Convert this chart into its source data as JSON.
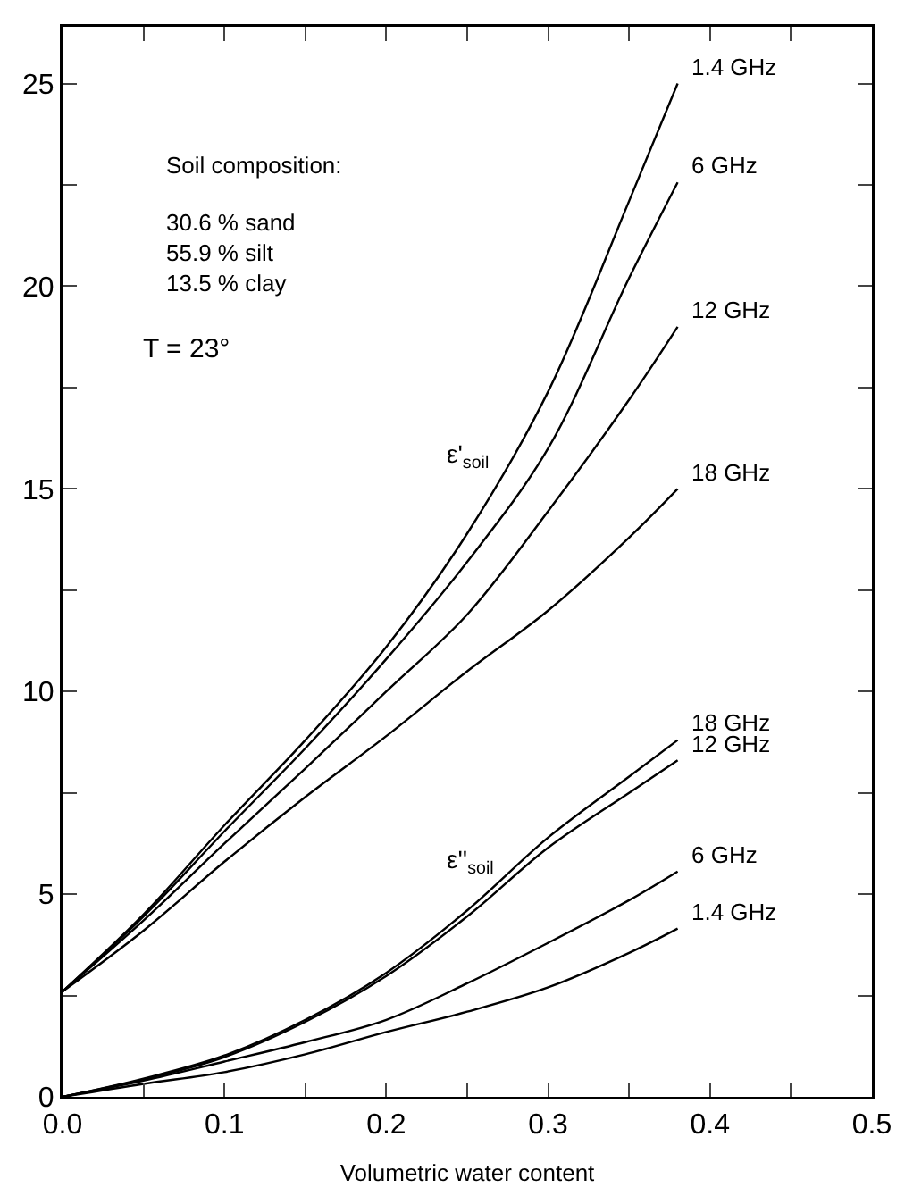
{
  "chart_data": {
    "type": "line",
    "xlabel": "Volumetric water content",
    "x": [
      0,
      0.05,
      0.1,
      0.15,
      0.2,
      0.25,
      0.3,
      0.35,
      0.38
    ],
    "series": [
      {
        "name": "1.4 GHz",
        "color": "#000000",
        "values": [
          2.6,
          4.5,
          6.7,
          8.8,
          11.1,
          13.9,
          17.4,
          22.1,
          25.0
        ]
      },
      {
        "name": "6 GHz",
        "color": "#000000",
        "values": [
          2.6,
          4.45,
          6.55,
          8.6,
          10.8,
          13.2,
          16.0,
          20.2,
          22.56
        ]
      },
      {
        "name": "12 GHz",
        "color": "#000000",
        "values": [
          2.6,
          4.35,
          6.25,
          8.1,
          10.0,
          11.9,
          14.45,
          17.2,
          19.0
        ]
      },
      {
        "name": "18 GHz",
        "color": "#000000",
        "values": [
          2.6,
          4.1,
          5.8,
          7.4,
          8.9,
          10.5,
          12.0,
          13.8,
          15.0
        ]
      },
      {
        "name": "18 GHz",
        "color": "#000000",
        "values": [
          0,
          0.45,
          1.02,
          1.9,
          3.06,
          4.6,
          6.4,
          7.9,
          8.8
        ]
      },
      {
        "name": "12 GHz",
        "color": "#000000",
        "values": [
          0,
          0.43,
          0.98,
          1.85,
          2.98,
          4.45,
          6.15,
          7.5,
          8.3
        ]
      },
      {
        "name": "6 GHz",
        "color": "#000000",
        "values": [
          0,
          0.4,
          0.87,
          1.35,
          1.9,
          2.8,
          3.8,
          4.85,
          5.56
        ]
      },
      {
        "name": "1.4 GHz",
        "color": "#000000",
        "values": [
          0,
          0.32,
          0.61,
          1.05,
          1.6,
          2.1,
          2.7,
          3.55,
          4.15
        ]
      }
    ],
    "xlim": [
      0,
      0.5
    ],
    "xticks": [
      {
        "value": 0,
        "label": "0.0"
      },
      {
        "value": 0.05,
        "label": null
      },
      {
        "value": 0.1,
        "label": "0.1"
      },
      {
        "value": 0.15,
        "label": null
      },
      {
        "value": 0.2,
        "label": "0.2"
      },
      {
        "value": 0.25,
        "label": null
      },
      {
        "value": 0.3,
        "label": "0.3"
      },
      {
        "value": 0.35,
        "label": null
      },
      {
        "value": 0.4,
        "label": "0.4"
      },
      {
        "value": 0.45,
        "label": null
      },
      {
        "value": 0.5,
        "label": "0.5"
      }
    ],
    "ylim": [
      0,
      26.4
    ],
    "yticks": [
      0,
      {
        "value": 2.5,
        "label": null
      },
      5,
      {
        "value": 7.5,
        "label": null
      },
      10,
      {
        "value": 12.5,
        "label": null
      },
      15,
      {
        "value": 17.5,
        "label": null
      },
      20,
      {
        "value": 22.5,
        "label": null
      },
      25
    ],
    "annotations": [
      "Soil composition:",
      "30.6 % sand\n55.9 % silt\n13.5 % clay",
      "T = 23°",
      "ε'$_{soil}$",
      "ε''$_{soil}$"
    ],
    "grid": false,
    "legend": false,
    "marker": "none",
    "line_style": "solid"
  }
}
